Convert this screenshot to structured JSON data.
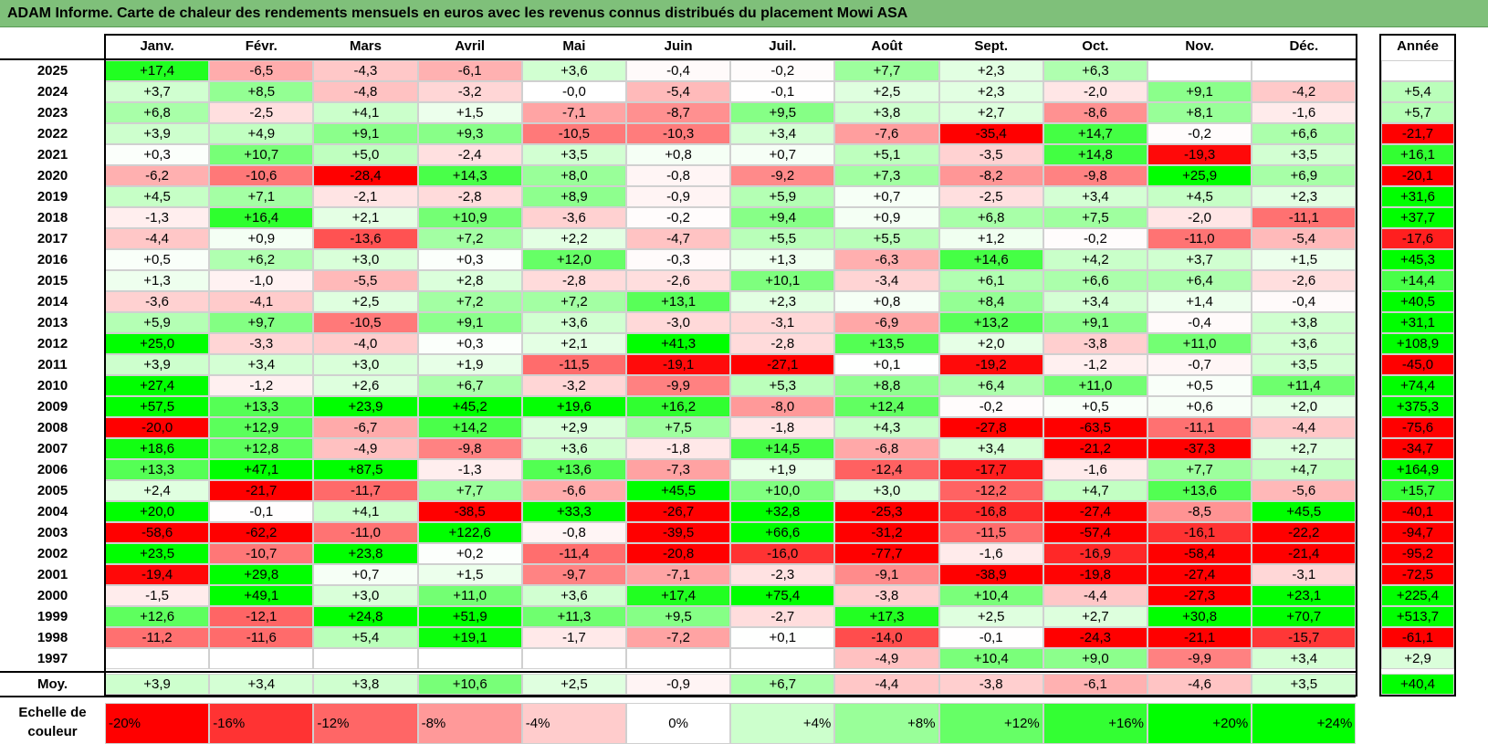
{
  "title": "ADAM Informe. Carte de chaleur des rendements mensuels en euros avec les revenus connus distribués du placement Mowi ASA",
  "chart_data": {
    "type": "heatmap",
    "columns": [
      "Janv.",
      "Févr.",
      "Mars",
      "Avril",
      "Mai",
      "Juin",
      "Juil.",
      "Août",
      "Sept.",
      "Oct.",
      "Nov.",
      "Déc."
    ],
    "year_column_label": "Année",
    "rows": [
      {
        "year": "2025",
        "values": [
          "+17,4",
          "-6,5",
          "-4,3",
          "-6,1",
          "+3,6",
          "-0,4",
          "-0,2",
          "+7,7",
          "+2,3",
          "+6,3",
          "",
          ""
        ],
        "annual": ""
      },
      {
        "year": "2024",
        "values": [
          "+3,7",
          "+8,5",
          "-4,8",
          "-3,2",
          "-0,0",
          "-5,4",
          "-0,1",
          "+2,5",
          "+2,3",
          "-2,0",
          "+9,1",
          "-4,2"
        ],
        "annual": "+5,4"
      },
      {
        "year": "2023",
        "values": [
          "+6,8",
          "-2,5",
          "+4,1",
          "+1,5",
          "-7,1",
          "-8,7",
          "+9,5",
          "+3,8",
          "+2,7",
          "-8,6",
          "+8,1",
          "-1,6"
        ],
        "annual": "+5,7"
      },
      {
        "year": "2022",
        "values": [
          "+3,9",
          "+4,9",
          "+9,1",
          "+9,3",
          "-10,5",
          "-10,3",
          "+3,4",
          "-7,6",
          "-35,4",
          "+14,7",
          "-0,2",
          "+6,6"
        ],
        "annual": "-21,7"
      },
      {
        "year": "2021",
        "values": [
          "+0,3",
          "+10,7",
          "+5,0",
          "-2,4",
          "+3,5",
          "+0,8",
          "+0,7",
          "+5,1",
          "-3,5",
          "+14,8",
          "-19,3",
          "+3,5"
        ],
        "annual": "+16,1"
      },
      {
        "year": "2020",
        "values": [
          "-6,2",
          "-10,6",
          "-28,4",
          "+14,3",
          "+8,0",
          "-0,8",
          "-9,2",
          "+7,3",
          "-8,2",
          "-9,8",
          "+25,9",
          "+6,9"
        ],
        "annual": "-20,1"
      },
      {
        "year": "2019",
        "values": [
          "+4,5",
          "+7,1",
          "-2,1",
          "-2,8",
          "+8,9",
          "-0,9",
          "+5,9",
          "+0,7",
          "-2,5",
          "+3,4",
          "+4,5",
          "+2,3"
        ],
        "annual": "+31,6"
      },
      {
        "year": "2018",
        "values": [
          "-1,3",
          "+16,4",
          "+2,1",
          "+10,9",
          "-3,6",
          "-0,2",
          "+9,4",
          "+0,9",
          "+6,8",
          "+7,5",
          "-2,0",
          "-11,1"
        ],
        "annual": "+37,7"
      },
      {
        "year": "2017",
        "values": [
          "-4,4",
          "+0,9",
          "-13,6",
          "+7,2",
          "+2,2",
          "-4,7",
          "+5,5",
          "+5,5",
          "+1,2",
          "-0,2",
          "-11,0",
          "-5,4"
        ],
        "annual": "-17,6"
      },
      {
        "year": "2016",
        "values": [
          "+0,5",
          "+6,2",
          "+3,0",
          "+0,3",
          "+12,0",
          "-0,3",
          "+1,3",
          "-6,3",
          "+14,6",
          "+4,2",
          "+3,7",
          "+1,5"
        ],
        "annual": "+45,3"
      },
      {
        "year": "2015",
        "values": [
          "+1,3",
          "-1,0",
          "-5,5",
          "+2,8",
          "-2,8",
          "-2,6",
          "+10,1",
          "-3,4",
          "+6,1",
          "+6,6",
          "+6,4",
          "-2,6"
        ],
        "annual": "+14,4"
      },
      {
        "year": "2014",
        "values": [
          "-3,6",
          "-4,1",
          "+2,5",
          "+7,2",
          "+7,2",
          "+13,1",
          "+2,3",
          "+0,8",
          "+8,4",
          "+3,4",
          "+1,4",
          "-0,4"
        ],
        "annual": "+40,5"
      },
      {
        "year": "2013",
        "values": [
          "+5,9",
          "+9,7",
          "-10,5",
          "+9,1",
          "+3,6",
          "-3,0",
          "-3,1",
          "-6,9",
          "+13,2",
          "+9,1",
          "-0,4",
          "+3,8"
        ],
        "annual": "+31,1"
      },
      {
        "year": "2012",
        "values": [
          "+25,0",
          "-3,3",
          "-4,0",
          "+0,3",
          "+2,1",
          "+41,3",
          "-2,8",
          "+13,5",
          "+2,0",
          "-3,8",
          "+11,0",
          "+3,6"
        ],
        "annual": "+108,9"
      },
      {
        "year": "2011",
        "values": [
          "+3,9",
          "+3,4",
          "+3,0",
          "+1,9",
          "-11,5",
          "-19,1",
          "-27,1",
          "+0,1",
          "-19,2",
          "-1,2",
          "-0,7",
          "+3,5"
        ],
        "annual": "-45,0"
      },
      {
        "year": "2010",
        "values": [
          "+27,4",
          "-1,2",
          "+2,6",
          "+6,7",
          "-3,2",
          "-9,9",
          "+5,3",
          "+8,8",
          "+6,4",
          "+11,0",
          "+0,5",
          "+11,4"
        ],
        "annual": "+74,4"
      },
      {
        "year": "2009",
        "values": [
          "+57,5",
          "+13,3",
          "+23,9",
          "+45,2",
          "+19,6",
          "+16,2",
          "-8,0",
          "+12,4",
          "-0,2",
          "+0,5",
          "+0,6",
          "+2,0"
        ],
        "annual": "+375,3"
      },
      {
        "year": "2008",
        "values": [
          "-20,0",
          "+12,9",
          "-6,7",
          "+14,2",
          "+2,9",
          "+7,5",
          "-1,8",
          "+4,3",
          "-27,8",
          "-63,5",
          "-11,1",
          "-4,4"
        ],
        "annual": "-75,6"
      },
      {
        "year": "2007",
        "values": [
          "+18,6",
          "+12,8",
          "-4,9",
          "-9,8",
          "+3,6",
          "-1,8",
          "+14,5",
          "-6,8",
          "+3,4",
          "-21,2",
          "-37,3",
          "+2,7"
        ],
        "annual": "-34,7"
      },
      {
        "year": "2006",
        "values": [
          "+13,3",
          "+47,1",
          "+87,5",
          "-1,3",
          "+13,6",
          "-7,3",
          "+1,9",
          "-12,4",
          "-17,7",
          "-1,6",
          "+7,7",
          "+4,7"
        ],
        "annual": "+164,9"
      },
      {
        "year": "2005",
        "values": [
          "+2,4",
          "-21,7",
          "-11,7",
          "+7,7",
          "-6,6",
          "+45,5",
          "+10,0",
          "+3,0",
          "-12,2",
          "+4,7",
          "+13,6",
          "-5,6"
        ],
        "annual": "+15,7"
      },
      {
        "year": "2004",
        "values": [
          "+20,0",
          "-0,1",
          "+4,1",
          "-38,5",
          "+33,3",
          "-26,7",
          "+32,8",
          "-25,3",
          "-16,8",
          "-27,4",
          "-8,5",
          "+45,5"
        ],
        "annual": "-40,1"
      },
      {
        "year": "2003",
        "values": [
          "-58,6",
          "-62,2",
          "-11,0",
          "+122,6",
          "-0,8",
          "-39,5",
          "+66,6",
          "-31,2",
          "-11,5",
          "-57,4",
          "-16,1",
          "-22,2"
        ],
        "annual": "-94,7"
      },
      {
        "year": "2002",
        "values": [
          "+23,5",
          "-10,7",
          "+23,8",
          "+0,2",
          "-11,4",
          "-20,8",
          "-16,0",
          "-77,7",
          "-1,6",
          "-16,9",
          "-58,4",
          "-21,4"
        ],
        "annual": "-95,2"
      },
      {
        "year": "2001",
        "values": [
          "-19,4",
          "+29,8",
          "+0,7",
          "+1,5",
          "-9,7",
          "-7,1",
          "-2,3",
          "-9,1",
          "-38,9",
          "-19,8",
          "-27,4",
          "-3,1"
        ],
        "annual": "-72,5"
      },
      {
        "year": "2000",
        "values": [
          "-1,5",
          "+49,1",
          "+3,0",
          "+11,0",
          "+3,6",
          "+17,4",
          "+75,4",
          "-3,8",
          "+10,4",
          "-4,4",
          "-27,3",
          "+23,1"
        ],
        "annual": "+225,4"
      },
      {
        "year": "1999",
        "values": [
          "+12,6",
          "-12,1",
          "+24,8",
          "+51,9",
          "+11,3",
          "+9,5",
          "-2,7",
          "+17,3",
          "+2,5",
          "+2,7",
          "+30,8",
          "+70,7"
        ],
        "annual": "+513,7"
      },
      {
        "year": "1998",
        "values": [
          "-11,2",
          "-11,6",
          "+5,4",
          "+19,1",
          "-1,7",
          "-7,2",
          "+0,1",
          "-14,0",
          "-0,1",
          "-24,3",
          "-21,1",
          "-15,7"
        ],
        "annual": "-61,1"
      },
      {
        "year": "1997",
        "values": [
          "",
          "",
          "",
          "",
          "",
          "",
          "",
          "-4,9",
          "+10,4",
          "+9,0",
          "-9,9",
          "+3,4"
        ],
        "annual": "+2,9"
      }
    ],
    "average": {
      "label": "Moy.",
      "values": [
        "+3,9",
        "+3,4",
        "+3,8",
        "+10,6",
        "+2,5",
        "-0,9",
        "+6,7",
        "-4,4",
        "-3,8",
        "-6,1",
        "-4,6",
        "+3,5"
      ],
      "annual": "+40,4"
    },
    "scale": {
      "label": "Echelle de couleur",
      "steps": [
        "-20%",
        "-16%",
        "-12%",
        "-8%",
        "-4%",
        "0%",
        "+4%",
        "+8%",
        "+12%",
        "+16%",
        "+20%",
        "+24%"
      ],
      "step_values": [
        -20,
        -16,
        -12,
        -8,
        -4,
        0,
        4,
        8,
        12,
        16,
        20,
        24
      ]
    },
    "colors": {
      "negative_max": "#ff0000",
      "neutral": "#ffffff",
      "positive_max": "#00ff00",
      "title_bar": "#7fc07a"
    }
  }
}
